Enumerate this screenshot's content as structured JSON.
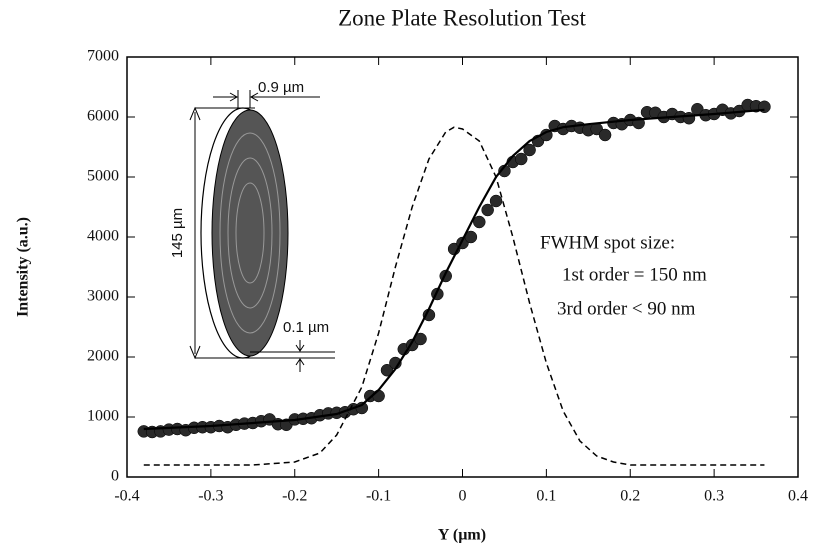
{
  "chart_data": {
    "type": "scatter",
    "title": "Zone Plate Resolution Test",
    "x_label": "Y (µm)",
    "y_label": "Intensity (a.u.)",
    "xlim": [
      -0.4,
      0.4
    ],
    "xticks": [
      -0.4,
      -0.3,
      -0.2,
      -0.1,
      0,
      0.1,
      0.2,
      0.3,
      0.4
    ],
    "ylim": [
      0,
      7000
    ],
    "yticks": [
      0,
      1000,
      2000,
      3000,
      4000,
      5000,
      6000,
      7000
    ],
    "annotations": [
      "FWHM spot size:",
      "1st order = 150 nm",
      "3rd order < 90 nm"
    ],
    "inset_labels": [
      "0.9 µm",
      "145 µm",
      "0.1 µm"
    ],
    "series": [
      {
        "style": "markers",
        "color": "#2a2a2a",
        "x": [
          -0.38,
          -0.37,
          -0.36,
          -0.35,
          -0.34,
          -0.33,
          -0.32,
          -0.31,
          -0.3,
          -0.29,
          -0.28,
          -0.27,
          -0.26,
          -0.25,
          -0.24,
          -0.23,
          -0.22,
          -0.21,
          -0.2,
          -0.19,
          -0.18,
          -0.17,
          -0.16,
          -0.15,
          -0.14,
          -0.13,
          -0.12,
          -0.11,
          -0.1,
          -0.09,
          -0.08,
          -0.07,
          -0.06,
          -0.05,
          -0.04,
          -0.03,
          -0.02,
          -0.01,
          0.0,
          0.01,
          0.02,
          0.03,
          0.04,
          0.05,
          0.06,
          0.07,
          0.08,
          0.09,
          0.1,
          0.11,
          0.12,
          0.13,
          0.14,
          0.15,
          0.16,
          0.17,
          0.18,
          0.19,
          0.2,
          0.21,
          0.22,
          0.23,
          0.24,
          0.25,
          0.26,
          0.27,
          0.28,
          0.29,
          0.3,
          0.31,
          0.32,
          0.33,
          0.34,
          0.35,
          0.36
        ],
        "values": [
          760,
          750,
          760,
          790,
          800,
          780,
          820,
          830,
          830,
          850,
          830,
          870,
          890,
          900,
          930,
          960,
          880,
          870,
          960,
          970,
          980,
          1030,
          1060,
          1070,
          1080,
          1130,
          1150,
          1350,
          1350,
          1780,
          1900,
          2130,
          2200,
          2300,
          2700,
          3050,
          3350,
          3800,
          3900,
          4000,
          4250,
          4450,
          4600,
          5100,
          5250,
          5300,
          5450,
          5600,
          5700,
          5850,
          5800,
          5850,
          5820,
          5780,
          5800,
          5700,
          5900,
          5880,
          5950,
          5900,
          6080,
          6070,
          6000,
          6050,
          6000,
          5980,
          6130,
          6030,
          6050,
          6120,
          6060,
          6100,
          6200,
          6180,
          6170
        ]
      },
      {
        "style": "solid",
        "color": "#000000",
        "x": [
          -0.38,
          -0.3,
          -0.2,
          -0.15,
          -0.12,
          -0.1,
          -0.08,
          -0.06,
          -0.04,
          -0.02,
          0,
          0.02,
          0.04,
          0.06,
          0.08,
          0.1,
          0.12,
          0.15,
          0.2,
          0.3,
          0.36
        ],
        "values": [
          800,
          850,
          950,
          1050,
          1200,
          1450,
          1800,
          2250,
          2800,
          3400,
          3950,
          4500,
          5000,
          5350,
          5600,
          5750,
          5830,
          5880,
          5950,
          6050,
          6120
        ]
      },
      {
        "style": "dashed",
        "color": "#000000",
        "x": [
          -0.38,
          -0.25,
          -0.2,
          -0.17,
          -0.15,
          -0.12,
          -0.1,
          -0.08,
          -0.06,
          -0.04,
          -0.02,
          -0.01,
          0,
          0.02,
          0.04,
          0.06,
          0.08,
          0.1,
          0.12,
          0.14,
          0.16,
          0.18,
          0.2,
          0.36
        ],
        "values": [
          200,
          200,
          250,
          400,
          700,
          1500,
          2400,
          3500,
          4500,
          5300,
          5750,
          5830,
          5800,
          5600,
          5000,
          4000,
          2900,
          1900,
          1100,
          600,
          350,
          250,
          200,
          200
        ]
      }
    ]
  }
}
